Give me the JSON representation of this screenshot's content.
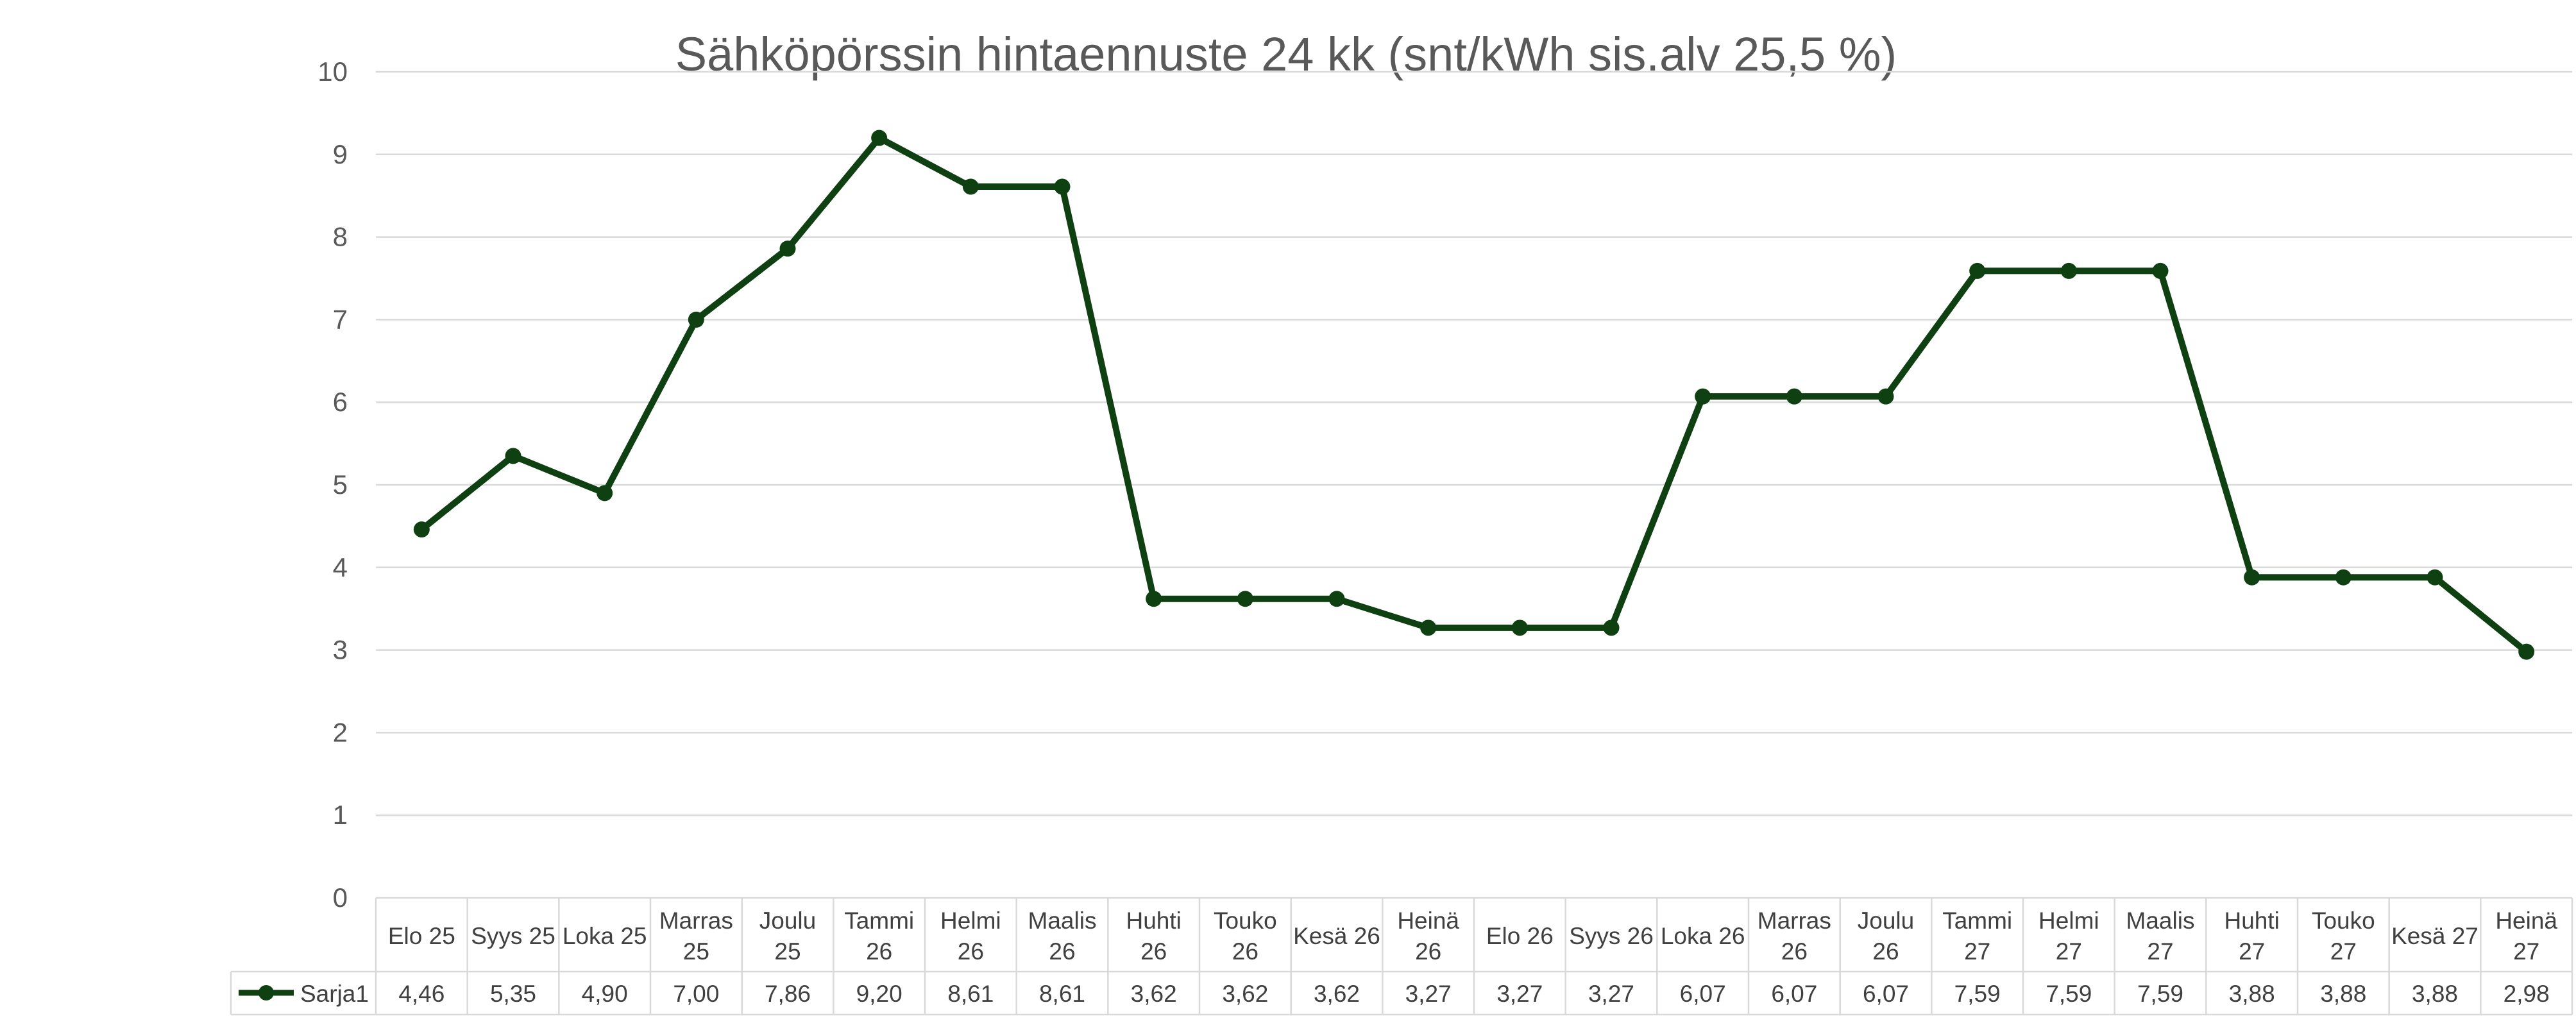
{
  "chart_data": {
    "type": "line",
    "title": "Sähköpörssin hintaennuste 24 kk (snt/kWh sis.alv 25,5 %)",
    "ylim": [
      0,
      10
    ],
    "yticks": [
      "0",
      "1",
      "2",
      "3",
      "4",
      "5",
      "6",
      "7",
      "8",
      "9",
      "10"
    ],
    "grid": true,
    "legend": "data-table",
    "categories": [
      [
        "Elo 25"
      ],
      [
        "Syys 25"
      ],
      [
        "Loka 25"
      ],
      [
        "Marras",
        "25"
      ],
      [
        "Joulu",
        "25"
      ],
      [
        "Tammi",
        "26"
      ],
      [
        "Helmi",
        "26"
      ],
      [
        "Maalis",
        "26"
      ],
      [
        "Huhti",
        "26"
      ],
      [
        "Touko",
        "26"
      ],
      [
        "Kesä 26"
      ],
      [
        "Heinä",
        "26"
      ],
      [
        "Elo 26"
      ],
      [
        "Syys 26"
      ],
      [
        "Loka 26"
      ],
      [
        "Marras",
        "26"
      ],
      [
        "Joulu",
        "26"
      ],
      [
        "Tammi",
        "27"
      ],
      [
        "Helmi",
        "27"
      ],
      [
        "Maalis",
        "27"
      ],
      [
        "Huhti",
        "27"
      ],
      [
        "Touko",
        "27"
      ],
      [
        "Kesä 27"
      ],
      [
        "Heinä",
        "27"
      ]
    ],
    "series": [
      {
        "name": "Sarja1",
        "color": "#0e4012",
        "values": [
          4.46,
          5.35,
          4.9,
          7.0,
          7.86,
          9.2,
          8.61,
          8.61,
          3.62,
          3.62,
          3.62,
          3.27,
          3.27,
          3.27,
          6.07,
          6.07,
          6.07,
          7.59,
          7.59,
          7.59,
          3.88,
          3.88,
          3.88,
          2.98
        ],
        "labels": [
          "4,46",
          "5,35",
          "4,90",
          "7,00",
          "7,86",
          "9,20",
          "8,61",
          "8,61",
          "3,62",
          "3,62",
          "3,62",
          "3,27",
          "3,27",
          "3,27",
          "6,07",
          "6,07",
          "6,07",
          "7,59",
          "7,59",
          "7,59",
          "3,88",
          "3,88",
          "3,88",
          "2,98"
        ]
      }
    ]
  }
}
